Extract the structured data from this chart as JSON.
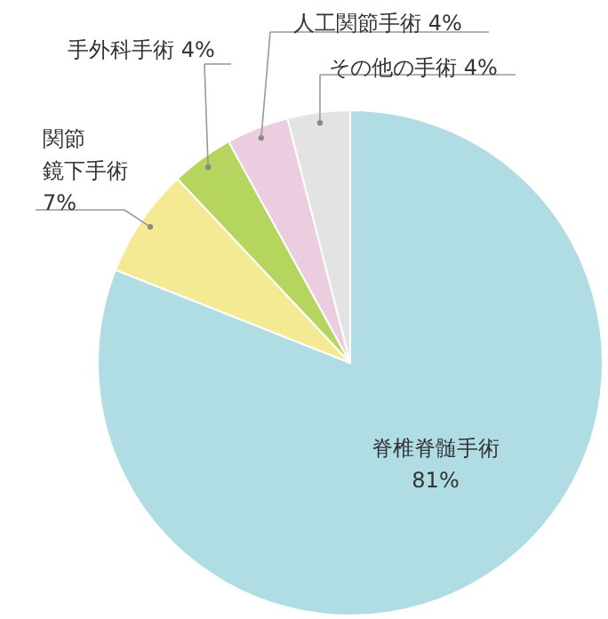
{
  "chart_data": {
    "type": "pie",
    "categories": [
      "脊椎脊髄手術",
      "関節鏡下手術",
      "手外科手術",
      "人工関節手術",
      "その他の手術"
    ],
    "values": [
      81,
      7,
      4,
      4,
      4
    ],
    "value_labels": [
      "81%",
      "7%",
      "4%",
      "4%",
      "4%"
    ],
    "colors": [
      "#b0dde4",
      "#f5ea94",
      "#b5d55f",
      "#eccde0",
      "#e3e3e3"
    ]
  }
}
